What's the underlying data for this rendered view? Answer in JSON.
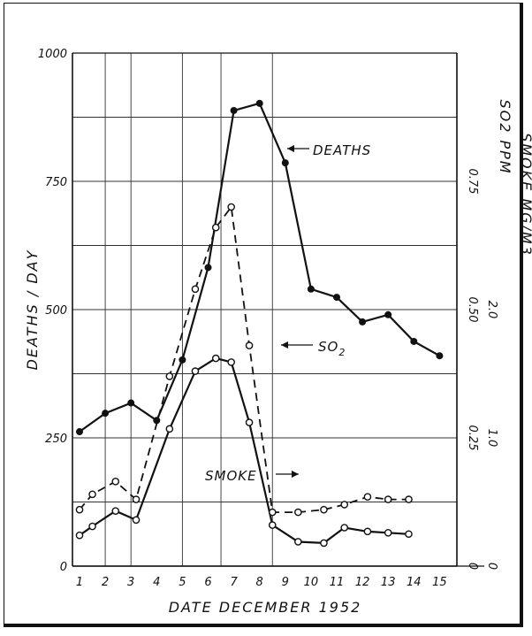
{
  "chart_data": {
    "type": "line",
    "title": "",
    "xlabel": "DATE  DECEMBER  1952",
    "ylabel_left": "DEATHS / DAY",
    "ylabel_right_1": "SO2 PPM",
    "ylabel_right_2": "SMOKE MG/M3",
    "x": [
      1,
      2,
      3,
      4,
      5,
      6,
      7,
      8,
      9,
      10,
      11,
      12,
      13,
      14,
      15
    ],
    "x_tick_labels": [
      "1",
      "2",
      "3",
      "4",
      "5",
      "6",
      "7",
      "8",
      "9",
      "10",
      "11",
      "12",
      "13",
      "14",
      "15"
    ],
    "y_left_ticks": [
      "0",
      "250",
      "500",
      "750",
      "1000"
    ],
    "y_right_so2_ticks": [
      "0",
      "0.25",
      "0.50",
      "0.75"
    ],
    "y_right_smoke_ticks": [
      "1.0",
      "2.0"
    ],
    "ylim_left": [
      0,
      1000
    ],
    "ylim_so2": [
      0,
      1.0
    ],
    "ylim_smoke": [
      0,
      4.0
    ],
    "grid": true,
    "series": [
      {
        "name": "DEATHS",
        "style": "solid-filled-dots",
        "axis": "left",
        "values": [
          262,
          298,
          318,
          284,
          402,
          582,
          888,
          902,
          786,
          540,
          524,
          476,
          490,
          438,
          410
        ]
      },
      {
        "name": "SO2",
        "label_main": "SO",
        "label_sub": "2",
        "style": "dashed-open-dots",
        "axis": "so2",
        "x": [
          1,
          1.5,
          2.4,
          3.2,
          4.5,
          5.5,
          6.3,
          6.9,
          7.6,
          8.5,
          9.5,
          10.5,
          11.3,
          12.2,
          13,
          13.8
        ],
        "values": [
          0.11,
          0.14,
          0.165,
          0.13,
          0.37,
          0.54,
          0.66,
          0.7,
          0.43,
          0.105,
          0.105,
          0.11,
          0.12,
          0.135,
          0.13,
          0.13
        ]
      },
      {
        "name": "SMOKE",
        "style": "solid-open-dots",
        "axis": "smoke",
        "x": [
          1,
          1.5,
          2.4,
          3.2,
          4.5,
          5.5,
          6.3,
          6.9,
          7.6,
          8.5,
          9.5,
          10.5,
          11.3,
          12.2,
          13,
          13.8
        ],
        "values": [
          0.24,
          0.31,
          0.43,
          0.36,
          1.07,
          1.52,
          1.62,
          1.59,
          1.12,
          0.32,
          0.19,
          0.18,
          0.3,
          0.27,
          0.26,
          0.25
        ]
      }
    ]
  }
}
